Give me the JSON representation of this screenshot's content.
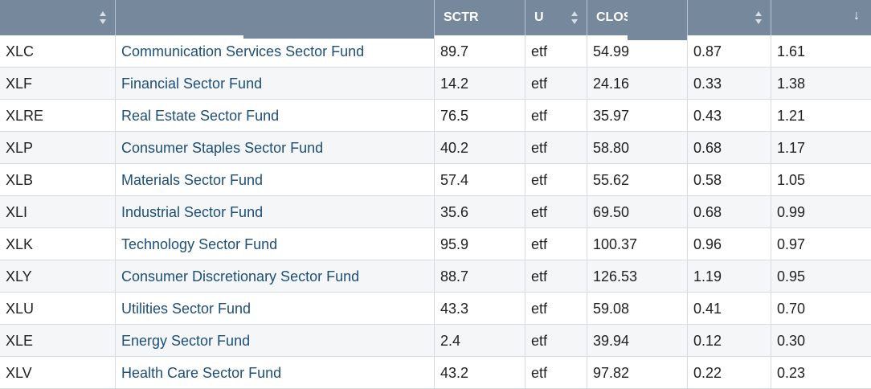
{
  "header": {
    "columns": [
      {
        "label": "",
        "sort": "both"
      },
      {
        "label": "",
        "sort": "both"
      },
      {
        "label": "SCTR",
        "sort": "none"
      },
      {
        "label": "U",
        "sort": "both"
      },
      {
        "label": "CLOSI",
        "sort": "both"
      },
      {
        "label": "",
        "sort": "both"
      },
      {
        "label": "",
        "sort": "down"
      }
    ]
  },
  "rows": [
    {
      "symbol": "XLC",
      "name": "Communication Services Sector Fund",
      "sctr": "89.7",
      "u": "etf",
      "close": "54.99",
      "c5": "0.87",
      "c6": "1.61"
    },
    {
      "symbol": "XLF",
      "name": "Financial Sector Fund",
      "sctr": "14.2",
      "u": "etf",
      "close": "24.16",
      "c5": "0.33",
      "c6": "1.38"
    },
    {
      "symbol": "XLRE",
      "name": "Real Estate Sector Fund",
      "sctr": "76.5",
      "u": "etf",
      "close": "35.97",
      "c5": "0.43",
      "c6": "1.21"
    },
    {
      "symbol": "XLP",
      "name": "Consumer Staples Sector Fund",
      "sctr": "40.2",
      "u": "etf",
      "close": "58.80",
      "c5": "0.68",
      "c6": "1.17"
    },
    {
      "symbol": "XLB",
      "name": "Materials Sector Fund",
      "sctr": "57.4",
      "u": "etf",
      "close": "55.62",
      "c5": "0.58",
      "c6": "1.05"
    },
    {
      "symbol": "XLI",
      "name": "Industrial Sector Fund",
      "sctr": "35.6",
      "u": "etf",
      "close": "69.50",
      "c5": "0.68",
      "c6": "0.99"
    },
    {
      "symbol": "XLK",
      "name": "Technology Sector Fund",
      "sctr": "95.9",
      "u": "etf",
      "close": "100.37",
      "c5": "0.96",
      "c6": "0.97"
    },
    {
      "symbol": "XLY",
      "name": "Consumer Discretionary Sector Fund",
      "sctr": "88.7",
      "u": "etf",
      "close": "126.53",
      "c5": "1.19",
      "c6": "0.95"
    },
    {
      "symbol": "XLU",
      "name": "Utilities Sector Fund",
      "sctr": "43.3",
      "u": "etf",
      "close": "59.08",
      "c5": "0.41",
      "c6": "0.70"
    },
    {
      "symbol": "XLE",
      "name": "Energy Sector Fund",
      "sctr": "2.4",
      "u": "etf",
      "close": "39.94",
      "c5": "0.12",
      "c6": "0.30"
    },
    {
      "symbol": "XLV",
      "name": "Health Care Sector Fund",
      "sctr": "43.2",
      "u": "etf",
      "close": "97.82",
      "c5": "0.22",
      "c6": "0.23"
    }
  ]
}
